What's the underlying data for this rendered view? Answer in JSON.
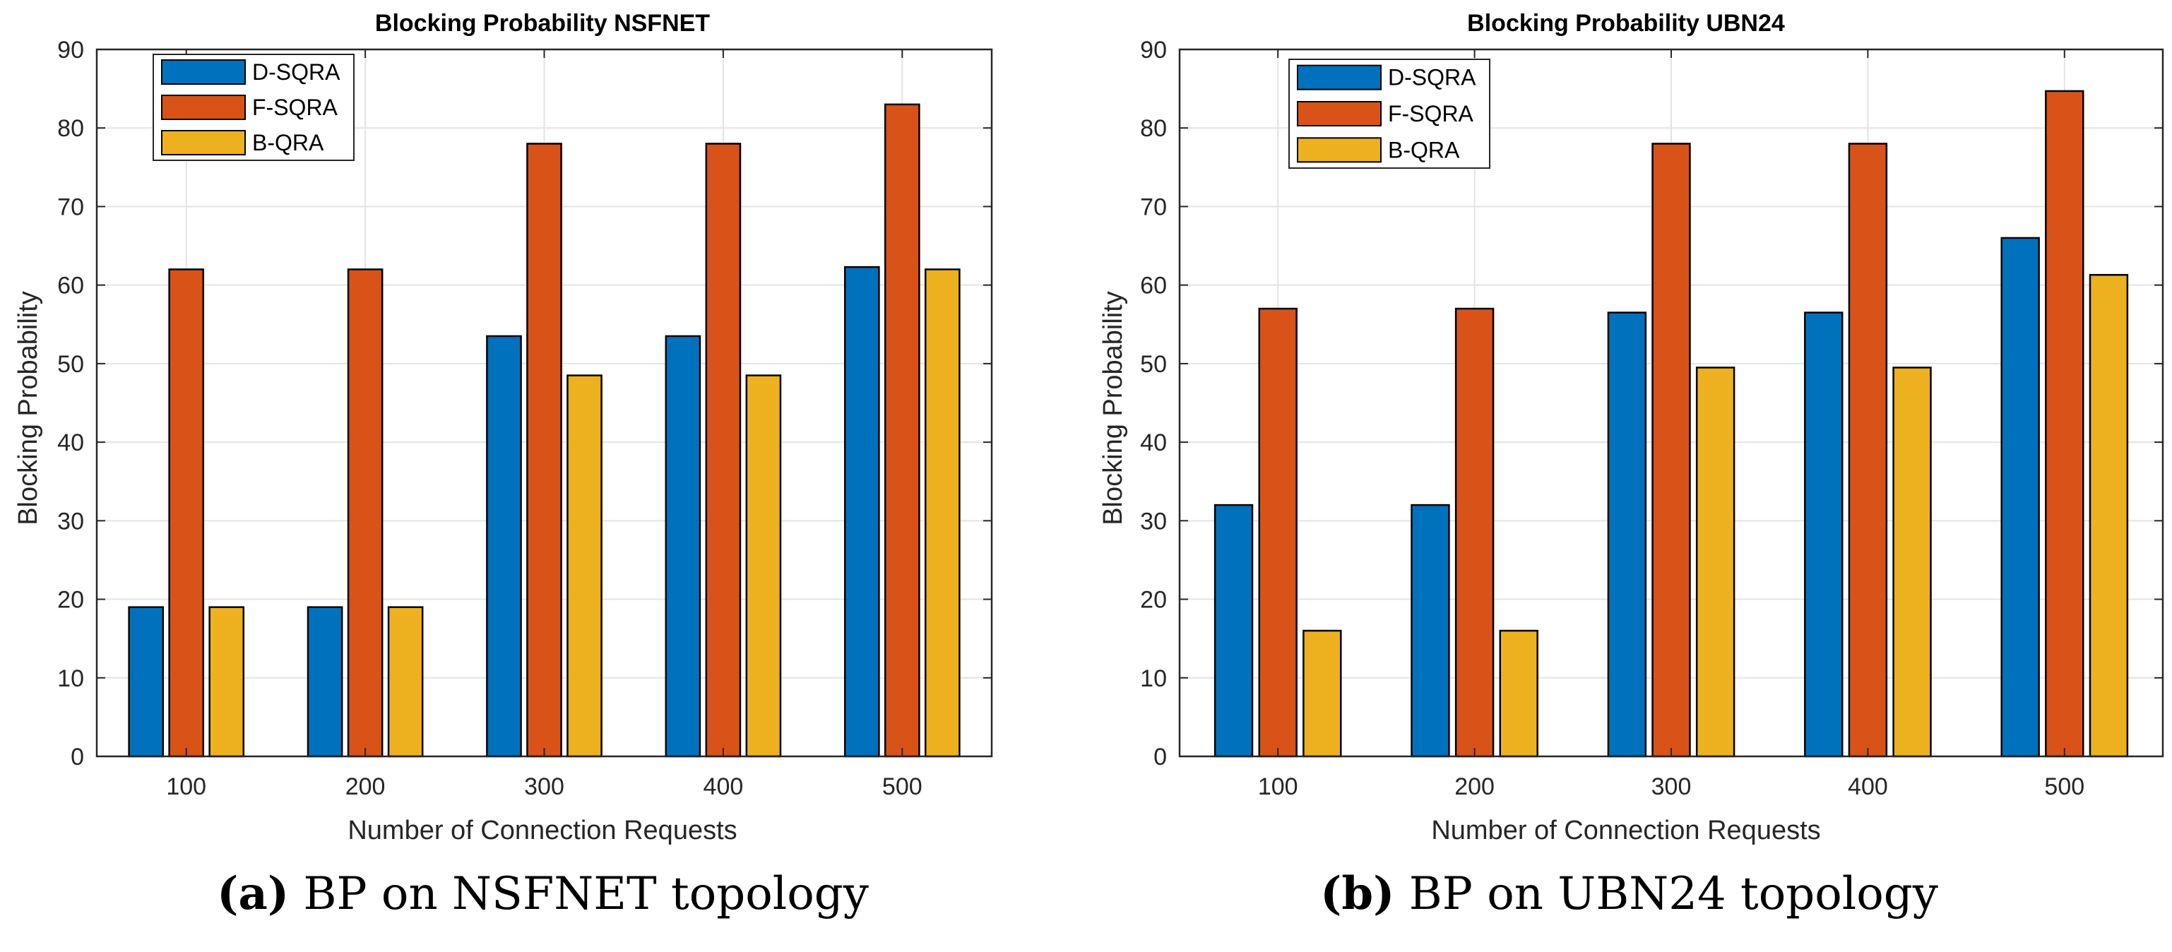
{
  "chart_data": [
    {
      "id": "a",
      "type": "bar",
      "title": "Blocking Probability NSFNET",
      "xlabel": "Number of Connection Requests",
      "ylabel": "Blocking Probability",
      "categories": [
        "100",
        "200",
        "300",
        "400",
        "500"
      ],
      "ylim": [
        0,
        90
      ],
      "yticks": [
        0,
        10,
        20,
        30,
        40,
        50,
        60,
        70,
        80,
        90
      ],
      "grid": true,
      "legend_position": "top-left",
      "series": [
        {
          "name": "D-SQRA",
          "color": "#0072BD",
          "values": [
            19,
            19,
            53.5,
            53.5,
            62.3
          ]
        },
        {
          "name": "F-SQRA",
          "color": "#D95319",
          "values": [
            62,
            62,
            78,
            78,
            83
          ]
        },
        {
          "name": "B-QRA",
          "color": "#EDB120",
          "values": [
            19,
            19,
            48.5,
            48.5,
            62
          ]
        }
      ],
      "caption_label": "(a)",
      "caption_text": "BP on NSFNET topology"
    },
    {
      "id": "b",
      "type": "bar",
      "title": "Blocking Probability UBN24",
      "xlabel": "Number of Connection Requests",
      "ylabel": "Blocking Probability",
      "categories": [
        "100",
        "200",
        "300",
        "400",
        "500"
      ],
      "ylim": [
        0,
        90
      ],
      "yticks": [
        0,
        10,
        20,
        30,
        40,
        50,
        60,
        70,
        80,
        90
      ],
      "grid": true,
      "legend_position": "top-left",
      "series": [
        {
          "name": "D-SQRA",
          "color": "#0072BD",
          "values": [
            32,
            32,
            56.5,
            56.5,
            66
          ]
        },
        {
          "name": "F-SQRA",
          "color": "#D95319",
          "values": [
            57,
            57,
            78,
            78,
            84.7
          ]
        },
        {
          "name": "B-QRA",
          "color": "#EDB120",
          "values": [
            16,
            16,
            49.5,
            49.5,
            61.3
          ]
        }
      ],
      "caption_label": "(b)",
      "caption_text": "BP on UBN24 topology"
    }
  ]
}
